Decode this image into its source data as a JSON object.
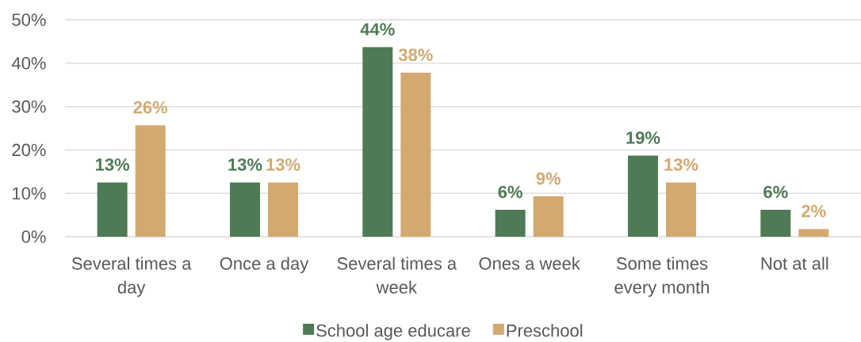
{
  "chart_data": {
    "type": "bar",
    "categories": [
      "Several times a day",
      "Once a day",
      "Several times a week",
      "Ones a week",
      "Some times every month",
      "Not at all"
    ],
    "series": [
      {
        "name": "School age educare",
        "color": "#4e7a55",
        "values": [
          12.5,
          12.5,
          43.7,
          6.2,
          18.7,
          6.2
        ],
        "value_labels": [
          "13%",
          "13%",
          "44%",
          "6%",
          "19%",
          "6%"
        ]
      },
      {
        "name": "Preschool",
        "color": "#d3a970",
        "values": [
          25.7,
          12.5,
          37.8,
          9.3,
          12.5,
          1.8
        ],
        "value_labels": [
          "26%",
          "13%",
          "38%",
          "9%",
          "13%",
          "2%"
        ]
      }
    ],
    "ylim": [
      0,
      50
    ],
    "yticks": [
      {
        "value": 0,
        "label": "0%"
      },
      {
        "value": 10,
        "label": "10%"
      },
      {
        "value": 20,
        "label": "20%"
      },
      {
        "value": 30,
        "label": "30%"
      },
      {
        "value": 40,
        "label": "40%"
      },
      {
        "value": 50,
        "label": "50%"
      }
    ],
    "grid": "y",
    "legend": "bottom"
  }
}
